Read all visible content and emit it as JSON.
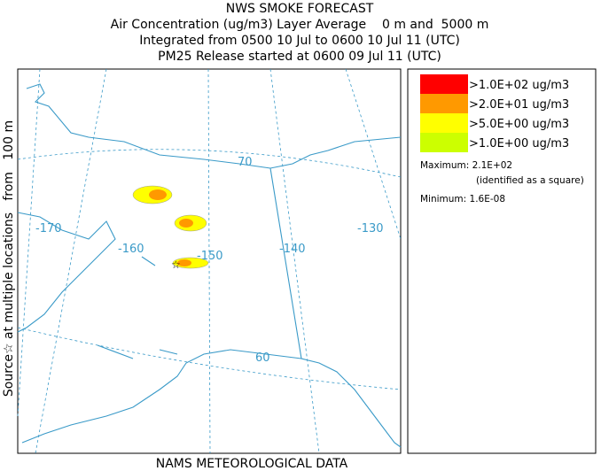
{
  "header": {
    "title": "NWS SMOKE FORECAST",
    "lines": [
      "Air Concentration (ug/m3) Layer Average    0 m and  5000 m",
      "Integrated from 0500 10 Jul to 0600 10 Jul 11 (UTC)",
      "PM25 Release started at 0600 09 Jul 11 (UTC)"
    ]
  },
  "side_label": "Source☆ at multiple locations   from   100 m",
  "footer": "NAMS METEOROLOGICAL DATA",
  "map": {
    "labels": [
      "-170",
      "-160",
      "-150",
      "-140",
      "-130",
      "70",
      "60"
    ]
  },
  "legend": {
    "items": [
      {
        "label": ">1.0E+02 ug/m3",
        "color": "#ff0000"
      },
      {
        "label": ">2.0E+01 ug/m3",
        "color": "#ff9900"
      },
      {
        "label": ">5.0E+00 ug/m3",
        "color": "#ffff00"
      },
      {
        "label": ">1.0E+00 ug/m3",
        "color": "#ccff00"
      }
    ],
    "maximum": "Maximum: 2.1E+02",
    "maximum_note": "(identified as a square)",
    "minimum": "Minimum: 1.6E-08"
  }
}
